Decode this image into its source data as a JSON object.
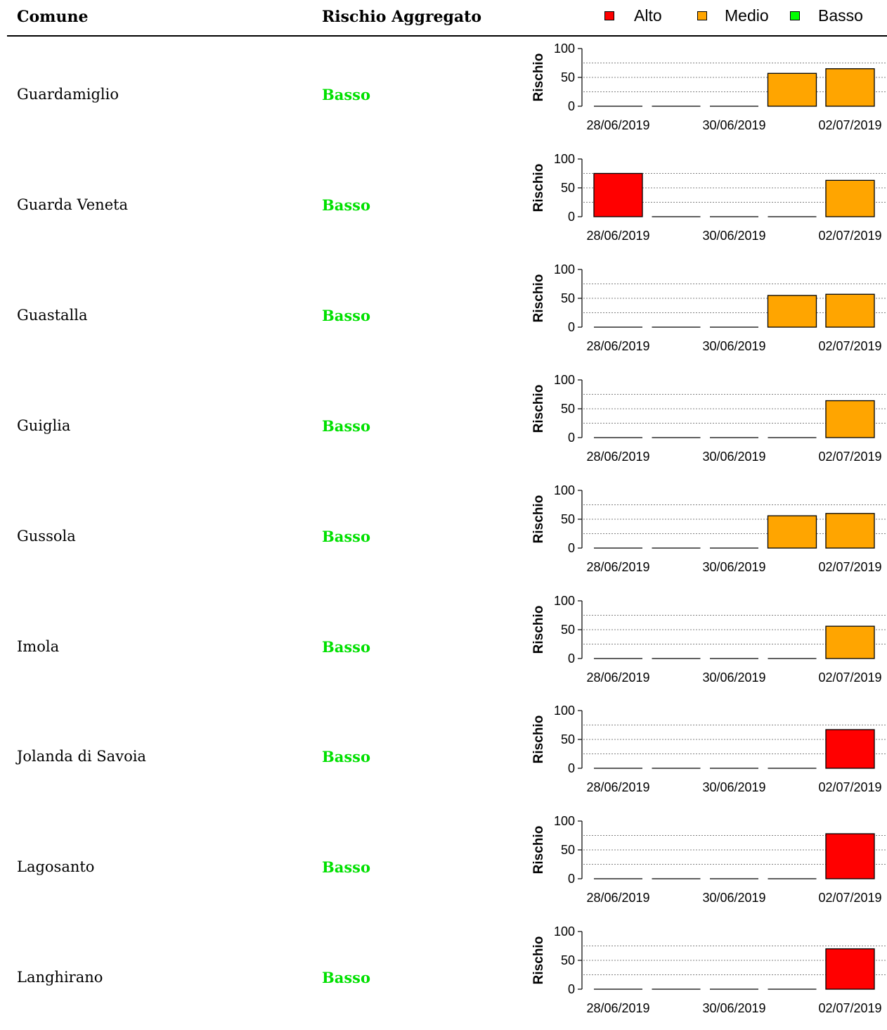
{
  "header": {
    "comune_label": "Comune",
    "rischio_label": "Rischio Aggregato"
  },
  "legend": [
    {
      "label": "Alto",
      "color": "#ff0000"
    },
    {
      "label": "Medio",
      "color": "#ffa500"
    },
    {
      "label": "Basso",
      "color": "#00ff00"
    }
  ],
  "chart_data": {
    "type": "bar",
    "ylabel": "Rischio",
    "ylim": [
      0,
      100
    ],
    "yticks": [
      0,
      50,
      100
    ],
    "grid_lines": [
      25,
      50,
      75
    ],
    "x_tick_labels": [
      "28/06/2019",
      "30/06/2019",
      "02/07/2019"
    ],
    "rows": [
      {
        "comune": "Guardamiglio",
        "rischio_aggregato": "Basso",
        "bars": [
          {
            "value": 0,
            "color": null
          },
          {
            "value": 0,
            "color": null
          },
          {
            "value": 0,
            "color": null
          },
          {
            "value": 57,
            "color": "#ffa500"
          },
          {
            "value": 65,
            "color": "#ffa500"
          }
        ]
      },
      {
        "comune": "Guarda Veneta",
        "rischio_aggregato": "Basso",
        "bars": [
          {
            "value": 75,
            "color": "#ff0000"
          },
          {
            "value": 0,
            "color": null
          },
          {
            "value": 0,
            "color": null
          },
          {
            "value": 0,
            "color": null
          },
          {
            "value": 63,
            "color": "#ffa500"
          }
        ]
      },
      {
        "comune": "Guastalla",
        "rischio_aggregato": "Basso",
        "bars": [
          {
            "value": 0,
            "color": null
          },
          {
            "value": 0,
            "color": null
          },
          {
            "value": 0,
            "color": null
          },
          {
            "value": 55,
            "color": "#ffa500"
          },
          {
            "value": 57,
            "color": "#ffa500"
          }
        ]
      },
      {
        "comune": "Guiglia",
        "rischio_aggregato": "Basso",
        "bars": [
          {
            "value": 0,
            "color": null
          },
          {
            "value": 0,
            "color": null
          },
          {
            "value": 0,
            "color": null
          },
          {
            "value": 0,
            "color": null
          },
          {
            "value": 64,
            "color": "#ffa500"
          }
        ]
      },
      {
        "comune": "Gussola",
        "rischio_aggregato": "Basso",
        "bars": [
          {
            "value": 0,
            "color": null
          },
          {
            "value": 0,
            "color": null
          },
          {
            "value": 0,
            "color": null
          },
          {
            "value": 56,
            "color": "#ffa500"
          },
          {
            "value": 60,
            "color": "#ffa500"
          }
        ]
      },
      {
        "comune": "Imola",
        "rischio_aggregato": "Basso",
        "bars": [
          {
            "value": 0,
            "color": null
          },
          {
            "value": 0,
            "color": null
          },
          {
            "value": 0,
            "color": null
          },
          {
            "value": 0,
            "color": null
          },
          {
            "value": 56,
            "color": "#ffa500"
          }
        ]
      },
      {
        "comune": "Jolanda di Savoia",
        "rischio_aggregato": "Basso",
        "bars": [
          {
            "value": 0,
            "color": null
          },
          {
            "value": 0,
            "color": null
          },
          {
            "value": 0,
            "color": null
          },
          {
            "value": 0,
            "color": null
          },
          {
            "value": 67,
            "color": "#ff0000"
          }
        ]
      },
      {
        "comune": "Lagosanto",
        "rischio_aggregato": "Basso",
        "bars": [
          {
            "value": 0,
            "color": null
          },
          {
            "value": 0,
            "color": null
          },
          {
            "value": 0,
            "color": null
          },
          {
            "value": 0,
            "color": null
          },
          {
            "value": 78,
            "color": "#ff0000"
          }
        ]
      },
      {
        "comune": "Langhirano",
        "rischio_aggregato": "Basso",
        "bars": [
          {
            "value": 0,
            "color": null
          },
          {
            "value": 0,
            "color": null
          },
          {
            "value": 0,
            "color": null
          },
          {
            "value": 0,
            "color": null
          },
          {
            "value": 70,
            "color": "#ff0000"
          }
        ]
      }
    ]
  }
}
